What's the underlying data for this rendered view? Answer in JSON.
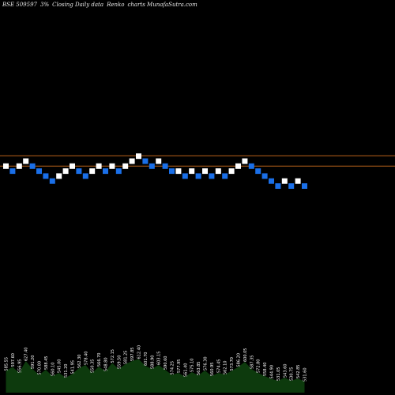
{
  "title": {
    "code": "BSE 509597",
    "box": "3%",
    "desc": "Closing Daily data",
    "type": "Renko",
    "site": "charts MunafaSutra.com"
  },
  "chart_data": {
    "type": "renko",
    "box_size_pct": 3,
    "bricks": [
      {
        "level": 4,
        "dir": "up"
      },
      {
        "level": 3,
        "dir": "down"
      },
      {
        "level": 4,
        "dir": "up"
      },
      {
        "level": 5,
        "dir": "up"
      },
      {
        "level": 4,
        "dir": "down"
      },
      {
        "level": 3,
        "dir": "down"
      },
      {
        "level": 2,
        "dir": "down"
      },
      {
        "level": 1,
        "dir": "down"
      },
      {
        "level": 2,
        "dir": "up"
      },
      {
        "level": 3,
        "dir": "up"
      },
      {
        "level": 4,
        "dir": "up"
      },
      {
        "level": 3,
        "dir": "down"
      },
      {
        "level": 2,
        "dir": "down"
      },
      {
        "level": 3,
        "dir": "up"
      },
      {
        "level": 4,
        "dir": "up"
      },
      {
        "level": 3,
        "dir": "down"
      },
      {
        "level": 4,
        "dir": "up"
      },
      {
        "level": 3,
        "dir": "down"
      },
      {
        "level": 4,
        "dir": "up"
      },
      {
        "level": 5,
        "dir": "up"
      },
      {
        "level": 6,
        "dir": "up"
      },
      {
        "level": 5,
        "dir": "down"
      },
      {
        "level": 4,
        "dir": "down"
      },
      {
        "level": 5,
        "dir": "up"
      },
      {
        "level": 4,
        "dir": "down"
      },
      {
        "level": 3,
        "dir": "down"
      },
      {
        "level": 3,
        "dir": "up"
      },
      {
        "level": 2,
        "dir": "down"
      },
      {
        "level": 3,
        "dir": "up"
      },
      {
        "level": 2,
        "dir": "down"
      },
      {
        "level": 3,
        "dir": "up"
      },
      {
        "level": 2,
        "dir": "down"
      },
      {
        "level": 3,
        "dir": "up"
      },
      {
        "level": 2,
        "dir": "down"
      },
      {
        "level": 3,
        "dir": "up"
      },
      {
        "level": 4,
        "dir": "up"
      },
      {
        "level": 5,
        "dir": "up"
      },
      {
        "level": 4,
        "dir": "down"
      },
      {
        "level": 3,
        "dir": "down"
      },
      {
        "level": 2,
        "dir": "down"
      },
      {
        "level": 1,
        "dir": "down"
      },
      {
        "level": 0,
        "dir": "down"
      },
      {
        "level": 1,
        "dir": "up"
      },
      {
        "level": 0,
        "dir": "down"
      },
      {
        "level": 1,
        "dir": "up"
      },
      {
        "level": 0,
        "dir": "down"
      }
    ],
    "reference_levels": [
      6.1,
      4.0
    ],
    "volume_labels": [
      "585.55",
      "597.60",
      "556.95",
      "627.40",
      "591.20",
      "570.00",
      "588.45",
      "560.10",
      "545.00",
      "531.20",
      "541.95",
      "562.30",
      "578.40",
      "550.35",
      "566.70",
      "548.80",
      "572.15",
      "559.50",
      "581.25",
      "597.85",
      "612.40",
      "601.70",
      "588.90",
      "603.15",
      "590.60",
      "574.25",
      "577.95",
      "561.40",
      "575.10",
      "563.85",
      "576.30",
      "560.95",
      "574.45",
      "562.10",
      "573.70",
      "586.20",
      "600.05",
      "587.35",
      "572.80",
      "558.40",
      "544.90",
      "531.05",
      "543.60",
      "530.75",
      "542.85",
      "531.60"
    ],
    "volume_values": [
      0.55,
      0.65,
      0.5,
      0.8,
      0.6,
      0.45,
      0.58,
      0.42,
      0.5,
      0.38,
      0.47,
      0.62,
      0.7,
      0.5,
      0.66,
      0.54,
      0.75,
      0.6,
      0.72,
      0.8,
      0.85,
      0.68,
      0.6,
      0.7,
      0.58,
      0.45,
      0.5,
      0.4,
      0.52,
      0.44,
      0.56,
      0.42,
      0.5,
      0.46,
      0.55,
      0.65,
      0.78,
      0.6,
      0.5,
      0.42,
      0.35,
      0.3,
      0.38,
      0.3,
      0.36,
      0.28
    ],
    "colors": {
      "up_brick": "#ffffff",
      "down_brick": "#1a6fe8",
      "ref_line": "#b8621b",
      "volume_fill": "#0d3a0d",
      "label_text": "#ffffff"
    }
  }
}
